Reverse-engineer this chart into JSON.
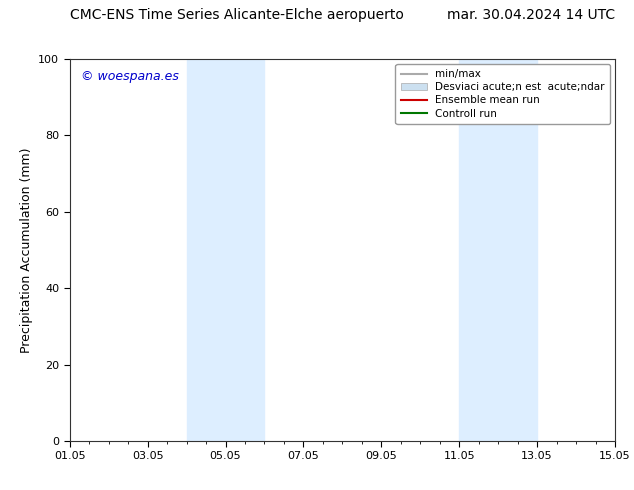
{
  "title_left": "CMC-ENS Time Series Alicante-Elche aeropuerto",
  "title_right": "mar. 30.04.2024 14 UTC",
  "ylabel": "Precipitation Accumulation (mm)",
  "watermark": "© woespana.es",
  "watermark_color": "#0000cc",
  "xlim_start": 0,
  "xlim_end": 14,
  "ylim": [
    0,
    100
  ],
  "yticks": [
    0,
    20,
    40,
    60,
    80,
    100
  ],
  "xtick_labels": [
    "01.05",
    "03.05",
    "05.05",
    "07.05",
    "09.05",
    "11.05",
    "13.05",
    "15.05"
  ],
  "xtick_positions": [
    0,
    2,
    4,
    6,
    8,
    10,
    12,
    14
  ],
  "shaded_regions": [
    {
      "xmin": 3.0,
      "xmax": 5.0,
      "color": "#ddeeff"
    },
    {
      "xmin": 10.0,
      "xmax": 12.0,
      "color": "#ddeeff"
    }
  ],
  "legend_entries": [
    {
      "label": "min/max",
      "color": "#aaaaaa",
      "lw": 1.5
    },
    {
      "label": "Desviaci acute;n est  acute;ndar",
      "color": "#cce0f0",
      "lw": 8
    },
    {
      "label": "Ensemble mean run",
      "color": "#cc0000",
      "lw": 1.5
    },
    {
      "label": "Controll run",
      "color": "#007700",
      "lw": 1.5
    }
  ],
  "bg_color": "#ffffff",
  "axes_bg_color": "#ffffff",
  "tick_fontsize": 8,
  "title_fontsize": 10,
  "ylabel_fontsize": 9,
  "legend_fontsize": 7.5
}
